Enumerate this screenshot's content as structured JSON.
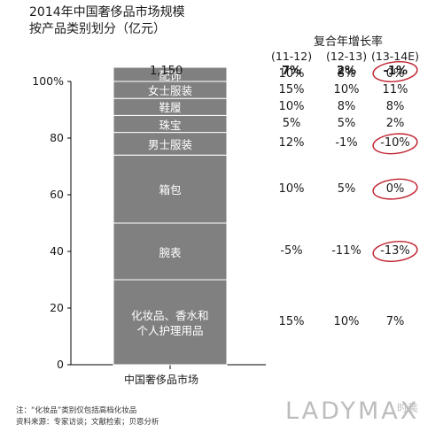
{
  "chart_data": {
    "type": "bar",
    "title": "2014年中国奢侈品市场规模",
    "subtitle": "按产品类别划分（亿元）",
    "category": "中国奢侈品市场",
    "total_label": "1,150",
    "ylim": [
      0,
      100
    ],
    "yticks": [
      0,
      20,
      40,
      60,
      80,
      100
    ],
    "ytick_labels": [
      "0",
      "20",
      "40",
      "60",
      "80",
      "100%"
    ],
    "segments": [
      {
        "name": "化妆品、香水和个人护理用品",
        "lines": [
          "化妆品、香水和",
          "个人护理用品"
        ],
        "value": 30,
        "growth": [
          "15%",
          "10%",
          "7%"
        ]
      },
      {
        "name": "腕表",
        "lines": [
          "腕表"
        ],
        "value": 20,
        "growth": [
          "-5%",
          "-11%",
          "-13%"
        ]
      },
      {
        "name": "箱包",
        "lines": [
          "箱包"
        ],
        "value": 24,
        "growth": [
          "10%",
          "5%",
          "0%"
        ]
      },
      {
        "name": "男士服装",
        "lines": [
          "男士服装"
        ],
        "value": 8,
        "growth": [
          "12%",
          "-1%",
          "-10%"
        ]
      },
      {
        "name": "珠宝",
        "lines": [
          "珠宝"
        ],
        "value": 6,
        "growth": [
          "5%",
          "5%",
          "2%"
        ]
      },
      {
        "name": "鞋履",
        "lines": [
          "鞋履"
        ],
        "value": 6,
        "growth": [
          "10%",
          "8%",
          "8%"
        ]
      },
      {
        "name": "女士服装",
        "lines": [
          "女士服装"
        ],
        "value": 6,
        "growth": [
          "15%",
          "10%",
          "11%"
        ]
      },
      {
        "name": "配饰",
        "lines": [
          "配饰"
        ],
        "value": 5,
        "growth": [
          "10%",
          "8%",
          "0%"
        ]
      }
    ],
    "growth_title": "复合年增长率",
    "growth_periods": [
      "(11-12)",
      "(12-13)",
      "(13-14E)"
    ],
    "growth_total": [
      "7%",
      "2%",
      "-1%"
    ],
    "circled": [
      {
        "row": "total",
        "col": 2
      },
      {
        "row": 3,
        "col": 2
      },
      {
        "row": 2,
        "col": 2
      },
      {
        "row": 1,
        "col": 2
      }
    ],
    "bar_color": "#808080",
    "circle_color": "#c0212f"
  },
  "notes": {
    "line1": "注：“化妆品”类别仅包括高档化妆品",
    "line2": "资料来源：专家访谈；文献检索；贝恩分析"
  },
  "watermark": "LADYMAX",
  "logo_text": "时装"
}
